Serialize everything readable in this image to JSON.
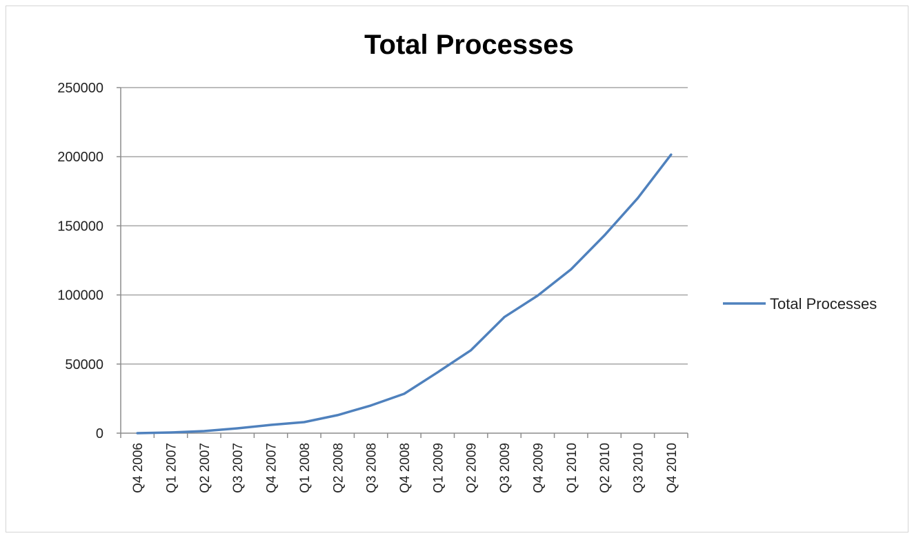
{
  "chart_data": {
    "type": "line",
    "title": "Total Processes",
    "xlabel": "",
    "ylabel": "",
    "categories": [
      "Q4 2006",
      "Q1 2007",
      "Q2 2007",
      "Q3 2007",
      "Q4 2007",
      "Q1 2008",
      "Q2 2008",
      "Q3 2008",
      "Q4 2008",
      "Q1 2009",
      "Q2 2009",
      "Q3 2009",
      "Q4 2009",
      "Q1 2010",
      "Q2 2010",
      "Q3 2010",
      "Q4 2010"
    ],
    "ylim": [
      0,
      250000
    ],
    "yticks": [
      "0",
      "50000",
      "100000",
      "150000",
      "200000",
      "250000"
    ],
    "ytick_values": [
      0,
      50000,
      100000,
      150000,
      200000,
      250000
    ],
    "grid": true,
    "legend": "right",
    "series": [
      {
        "name": "Total Processes",
        "color": "#4f81bd",
        "values": [
          0,
          500,
          1500,
          3500,
          6000,
          8000,
          13000,
          20000,
          28500,
          44000,
          60000,
          84000,
          99500,
          118500,
          143000,
          170000,
          201500
        ]
      }
    ]
  }
}
